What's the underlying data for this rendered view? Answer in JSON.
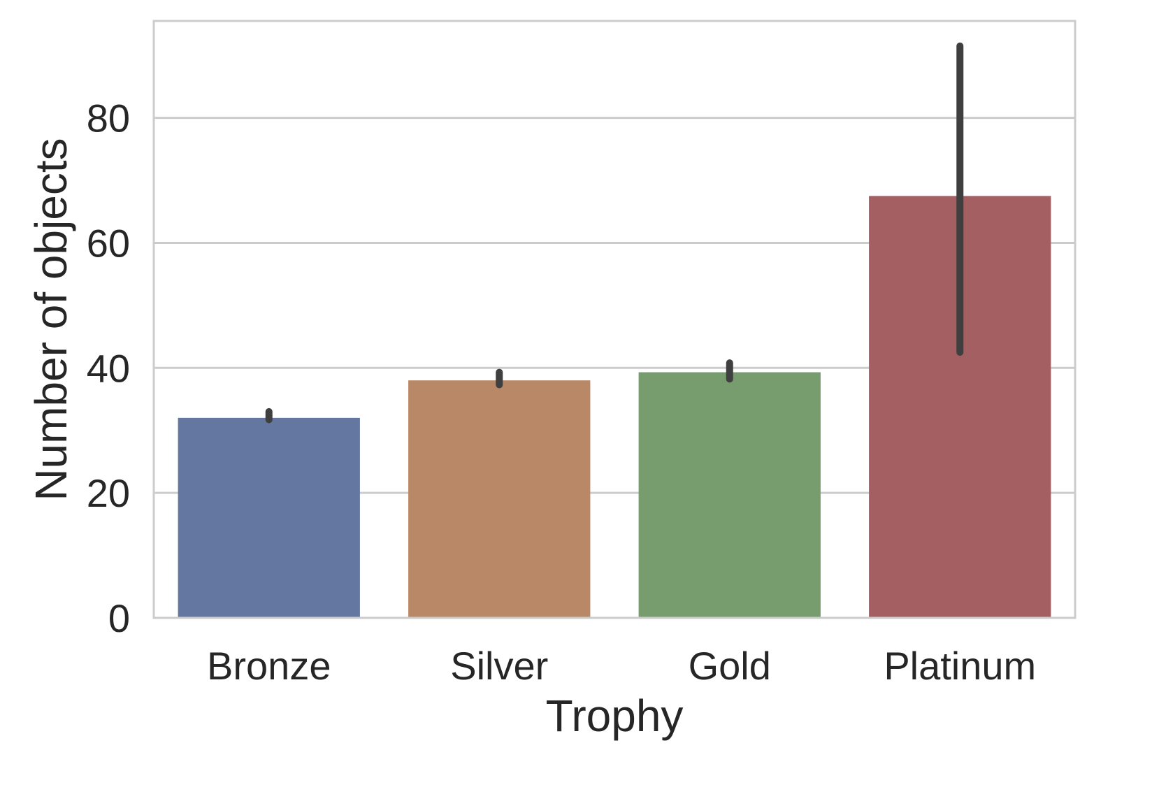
{
  "chart_data": {
    "type": "bar",
    "categories": [
      "Bronze",
      "Silver",
      "Gold",
      "Platinum"
    ],
    "values": [
      32,
      38,
      39.3,
      67.5
    ],
    "error_bars": [
      {
        "low": 31.7,
        "high": 33
      },
      {
        "low": 37.3,
        "high": 39.3
      },
      {
        "low": 38.2,
        "high": 40.8
      },
      {
        "low": 42.5,
        "high": 91.5
      }
    ],
    "colors": [
      "#6377a0",
      "#b98866",
      "#779d6f",
      "#a35f61"
    ],
    "error_color": "#3f3f3f",
    "title": "",
    "xlabel": "Trophy",
    "ylabel": "Number of objects",
    "ylim": [
      0,
      95.5
    ],
    "yticks": [
      0,
      20,
      40,
      60,
      80
    ],
    "grid": "horizontal",
    "grid_color": "#cccccc"
  }
}
